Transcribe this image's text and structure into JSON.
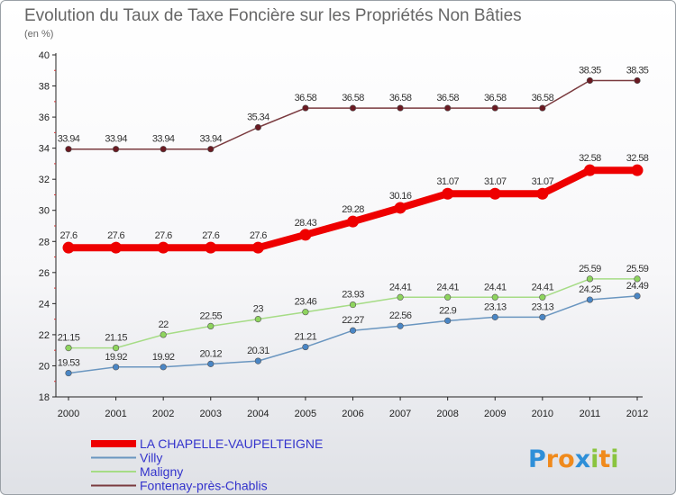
{
  "chart_data": {
    "type": "line",
    "title": "Evolution du Taux de Taxe Foncière sur les Propriétés Non Bâties",
    "subtitle": "(en %)",
    "xlabel": "",
    "ylabel": "",
    "x": [
      "2000",
      "2001",
      "2002",
      "2003",
      "2004",
      "2005",
      "2006",
      "2007",
      "2008",
      "2009",
      "2010",
      "2011",
      "2012"
    ],
    "ylim": [
      18,
      40
    ],
    "yticks": [
      18,
      20,
      22,
      24,
      26,
      28,
      30,
      32,
      34,
      36,
      38,
      40
    ],
    "grid": false,
    "series": [
      {
        "name": "LA CHAPELLE-VAUPELTEIGNE",
        "color": "#ee0000",
        "marker_color": "#ee0000",
        "values": [
          27.6,
          27.6,
          27.6,
          27.6,
          27.6,
          28.43,
          29.28,
          30.16,
          31.07,
          31.07,
          31.07,
          32.58,
          32.58
        ],
        "labels": [
          "27.6",
          "27.6",
          "27.6",
          "27.6",
          "27.6",
          "28.43",
          "29.28",
          "30.16",
          "31.07",
          "31.07",
          "31.07",
          "32.58",
          "32.58"
        ]
      },
      {
        "name": "Villy",
        "color": "#6a96c0",
        "marker_color": "#4a86c5",
        "values": [
          19.53,
          19.92,
          19.92,
          20.12,
          20.31,
          21.21,
          22.27,
          22.56,
          22.9,
          23.13,
          23.13,
          24.25,
          24.49
        ],
        "labels": [
          "19.53",
          "19.92",
          "19.92",
          "20.12",
          "20.31",
          "21.21",
          "22.27",
          "22.56",
          "22.9",
          "23.13",
          "23.13",
          "24.25",
          "24.49"
        ]
      },
      {
        "name": "Maligny",
        "color": "#a6dc86",
        "marker_color": "#8ed45e",
        "values": [
          21.15,
          21.15,
          22,
          22.55,
          23,
          23.46,
          23.93,
          24.41,
          24.41,
          24.41,
          24.41,
          25.59,
          25.59
        ],
        "labels": [
          "21.15",
          "21.15",
          "22",
          "22.55",
          "23",
          "23.46",
          "23.93",
          "24.41",
          "24.41",
          "24.41",
          "24.41",
          "25.59",
          "25.59"
        ]
      },
      {
        "name": "Fontenay-près-Chablis",
        "color": "#7a3a3e",
        "marker_color": "#6a1a22",
        "values": [
          33.94,
          33.94,
          33.94,
          33.94,
          35.34,
          36.58,
          36.58,
          36.58,
          36.58,
          36.58,
          36.58,
          38.35,
          38.35
        ],
        "labels": [
          "33.94",
          "33.94",
          "33.94",
          "33.94",
          "35.34",
          "36.58",
          "36.58",
          "36.58",
          "36.58",
          "36.58",
          "36.58",
          "38.35",
          "38.35"
        ]
      }
    ],
    "legend": {
      "placement": "bottom-left",
      "text_color": "#3333cc",
      "entries": [
        "LA CHAPELLE-VAUPELTEIGNE",
        "Villy",
        "Maligny",
        "Fontenay-près-Chablis"
      ]
    }
  },
  "logo": {
    "text": "Proxiti",
    "letters": [
      {
        "char": "P",
        "color": "#2e8fd8"
      },
      {
        "char": "r",
        "color": "#f08a1c"
      },
      {
        "char": "o",
        "color": "#f08a1c"
      },
      {
        "char": "x",
        "color": "#2e8fd8"
      },
      {
        "char": "i",
        "color": "#8ac43f"
      },
      {
        "char": "t",
        "color": "#f08a1c"
      },
      {
        "char": "i",
        "color": "#8ac43f"
      }
    ]
  }
}
